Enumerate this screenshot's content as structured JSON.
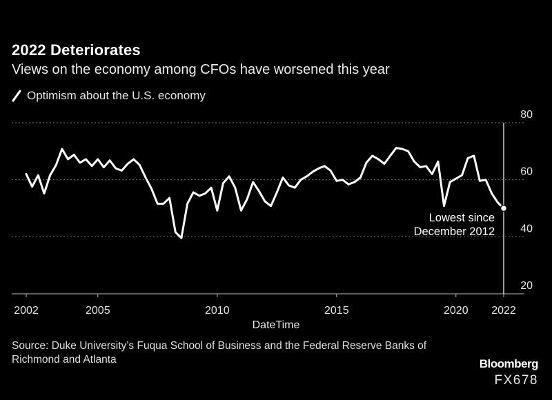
{
  "colors": {
    "background": "#000000",
    "line": "#ffffff",
    "grid": "#777777",
    "text": "#e6e6e6"
  },
  "chart_data": {
    "type": "line",
    "title": "2022 Deteriorates",
    "subtitle": "Views on the economy among CFOs have worsened this year",
    "xlabel": "DateTime",
    "ylabel": "",
    "xlim": [
      2001.8,
      2023.0
    ],
    "ylim": [
      20,
      80
    ],
    "y_ticks": [
      20,
      40,
      60,
      80
    ],
    "y_tick_labels": [
      "20",
      "40",
      "60",
      "80"
    ],
    "x_ticks": [
      2002,
      2005,
      2010,
      2015,
      2020,
      2022
    ],
    "x_tick_labels": [
      "2002",
      "2005",
      "2010",
      "2015",
      "2020",
      "2022"
    ],
    "grid": true,
    "legend": "top-left",
    "series": [
      {
        "name": "Optimism about the U.S. economy",
        "x": [
          2002.0,
          2002.25,
          2002.5,
          2002.75,
          2003.0,
          2003.25,
          2003.5,
          2003.75,
          2004.0,
          2004.25,
          2004.5,
          2004.75,
          2005.0,
          2005.25,
          2005.5,
          2005.75,
          2006.0,
          2006.25,
          2006.5,
          2006.75,
          2007.0,
          2007.25,
          2007.5,
          2007.75,
          2008.0,
          2008.25,
          2008.5,
          2008.75,
          2009.0,
          2009.25,
          2009.5,
          2009.75,
          2010.0,
          2010.25,
          2010.5,
          2010.75,
          2011.0,
          2011.25,
          2011.5,
          2011.75,
          2012.0,
          2012.25,
          2012.5,
          2012.75,
          2013.0,
          2013.25,
          2013.5,
          2013.75,
          2014.0,
          2014.25,
          2014.5,
          2014.75,
          2015.0,
          2015.25,
          2015.5,
          2015.75,
          2016.0,
          2016.25,
          2016.5,
          2016.75,
          2017.0,
          2017.25,
          2017.5,
          2017.75,
          2018.0,
          2018.25,
          2018.5,
          2018.75,
          2019.0,
          2019.25,
          2019.5,
          2019.75,
          2020.0,
          2020.25,
          2020.5,
          2020.75,
          2021.0,
          2021.25,
          2021.5,
          2021.75,
          2022.0
        ],
        "values": [
          62,
          57.6,
          61.6,
          55.2,
          61.6,
          65.2,
          70.8,
          67.2,
          68.8,
          66,
          67.2,
          64.8,
          67.2,
          64.4,
          66.8,
          64,
          63.2,
          65.6,
          67.2,
          65.2,
          60.8,
          56.8,
          51.6,
          51.6,
          53.6,
          41.6,
          39.6,
          51.6,
          55.6,
          54.4,
          55.2,
          57.2,
          49.2,
          58.8,
          61.2,
          57.2,
          49.2,
          53.2,
          59.2,
          56,
          52.4,
          50.8,
          55.6,
          60.8,
          58,
          57.2,
          60,
          61.2,
          62.8,
          64,
          64.8,
          63.2,
          59.6,
          60,
          58.4,
          59.2,
          60.8,
          66,
          68.4,
          67.2,
          65.6,
          68.4,
          71.2,
          70.8,
          70,
          66.4,
          64.4,
          64.8,
          62,
          66.4,
          50.8,
          59.2,
          60.4,
          61.6,
          67.6,
          68.4,
          59.6,
          60,
          55.2,
          52,
          50
        ]
      }
    ],
    "annotations": [
      {
        "text": "Lowest since December 2012",
        "lines": [
          "Lowest since",
          "December 2012"
        ],
        "x": 2022.0,
        "y": 50
      }
    ]
  },
  "source_text": "Source: Duke University’s Fuqua School of Business and the Federal Reserve Banks of Richmond and Atlanta",
  "brand": "Bloomberg",
  "code": "FX678"
}
